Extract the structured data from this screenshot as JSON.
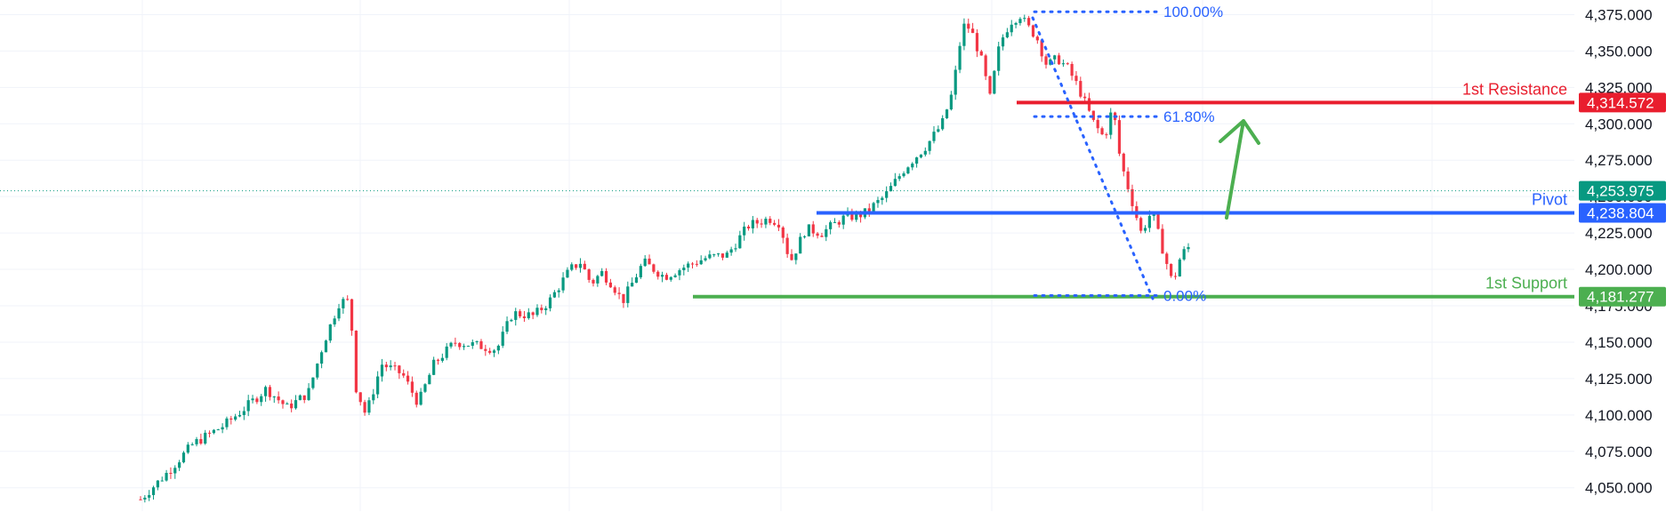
{
  "chart_data": {
    "type": "candlestick",
    "y_axis": {
      "range": [
        4037,
        4382
      ],
      "ticks": [
        4050,
        4075,
        4100,
        4125,
        4150,
        4175,
        4200,
        4225,
        4250,
        4275,
        4300,
        4325,
        4350,
        4375
      ],
      "tick_labels": [
        "4,050.000",
        "4,075.000",
        "4,100.000",
        "4,125.000",
        "4,150.000",
        "4,175.000",
        "4,200.000",
        "4,225.000",
        "4,250.000",
        "4,275.000",
        "4,300.000",
        "4,325.000",
        "4,350.000",
        "4,375.000"
      ]
    },
    "colors": {
      "up": "#089981",
      "down": "#f23645",
      "resistance": "#e91e2e",
      "pivot": "#2962ff",
      "support": "#4caf50",
      "fib": "#2962ff",
      "arrow": "#4caf50"
    },
    "levels": [
      {
        "key": "resistance",
        "name": "1st Resistance",
        "value": 4314.572,
        "label": "4,314.572"
      },
      {
        "key": "pivot",
        "name": "Pivot",
        "value": 4238.804,
        "label": "4,238.804"
      },
      {
        "key": "support",
        "name": "1st Support",
        "value": 4181.277,
        "label": "4,181.277"
      }
    ],
    "last_price": {
      "value": 4253.975,
      "label": "4,253.975"
    },
    "fibonacci": [
      {
        "label": "100.00%",
        "value": 4377
      },
      {
        "label": "61.80%",
        "value": 4305
      },
      {
        "label": "0.00%",
        "value": 4182
      }
    ],
    "close_path": [
      [
        0,
        4042
      ],
      [
        0.025,
        4060
      ],
      [
        0.05,
        4080
      ],
      [
        0.08,
        4093
      ],
      [
        0.1,
        4105
      ],
      [
        0.12,
        4118
      ],
      [
        0.14,
        4105
      ],
      [
        0.16,
        4115
      ],
      [
        0.175,
        4150
      ],
      [
        0.19,
        4178
      ],
      [
        0.2,
        4178
      ],
      [
        0.205,
        4120
      ],
      [
        0.215,
        4100
      ],
      [
        0.23,
        4135
      ],
      [
        0.25,
        4128
      ],
      [
        0.265,
        4108
      ],
      [
        0.28,
        4135
      ],
      [
        0.3,
        4150
      ],
      [
        0.32,
        4148
      ],
      [
        0.34,
        4145
      ],
      [
        0.355,
        4170
      ],
      [
        0.375,
        4168
      ],
      [
        0.39,
        4178
      ],
      [
        0.41,
        4200
      ],
      [
        0.42,
        4205
      ],
      [
        0.43,
        4190
      ],
      [
        0.44,
        4198
      ],
      [
        0.45,
        4190
      ],
      [
        0.46,
        4178
      ],
      [
        0.48,
        4205
      ],
      [
        0.5,
        4195
      ],
      [
        0.52,
        4202
      ],
      [
        0.54,
        4208
      ],
      [
        0.56,
        4210
      ],
      [
        0.58,
        4230
      ],
      [
        0.6,
        4235
      ],
      [
        0.61,
        4232
      ],
      [
        0.62,
        4205
      ],
      [
        0.635,
        4228
      ],
      [
        0.65,
        4225
      ],
      [
        0.67,
        4235
      ],
      [
        0.69,
        4238
      ],
      [
        0.71,
        4250
      ],
      [
        0.73,
        4270
      ],
      [
        0.75,
        4285
      ],
      [
        0.765,
        4300
      ],
      [
        0.775,
        4322
      ],
      [
        0.782,
        4355
      ],
      [
        0.787,
        4370
      ],
      [
        0.795,
        4360
      ],
      [
        0.805,
        4338
      ],
      [
        0.81,
        4315
      ],
      [
        0.815,
        4335
      ],
      [
        0.82,
        4355
      ],
      [
        0.83,
        4370
      ],
      [
        0.84,
        4375
      ],
      [
        0.845,
        4368
      ],
      [
        0.855,
        4360
      ],
      [
        0.865,
        4340
      ],
      [
        0.875,
        4345
      ],
      [
        0.885,
        4338
      ],
      [
        0.895,
        4325
      ],
      [
        0.91,
        4300
      ],
      [
        0.92,
        4290
      ],
      [
        0.928,
        4312
      ],
      [
        0.935,
        4275
      ],
      [
        0.945,
        4250
      ],
      [
        0.955,
        4225
      ],
      [
        0.965,
        4240
      ],
      [
        0.975,
        4215
      ],
      [
        0.985,
        4190
      ],
      [
        0.993,
        4210
      ],
      [
        1,
        4215
      ]
    ]
  }
}
